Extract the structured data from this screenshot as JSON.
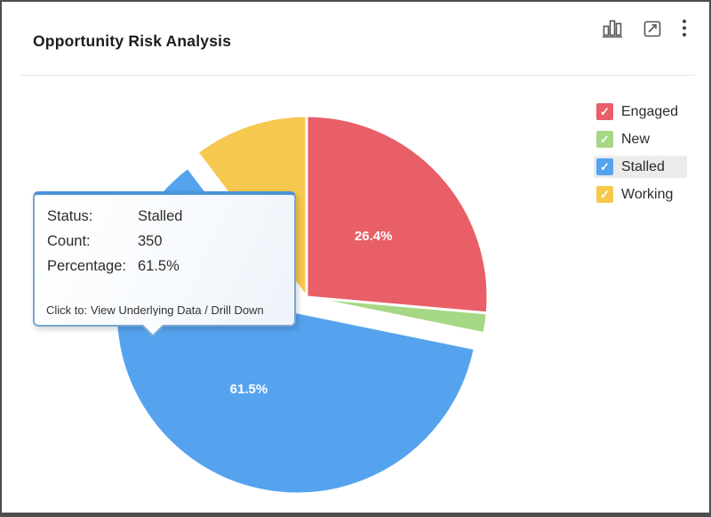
{
  "header": {
    "title": "Opportunity Risk Analysis",
    "icons": {
      "chart_type": "bar-chart",
      "expand": "open-in-window",
      "menu": "kebab-menu"
    }
  },
  "chart_data": {
    "type": "pie",
    "title": "Opportunity Risk Analysis",
    "categories": [
      "Engaged",
      "New",
      "Stalled",
      "Working"
    ],
    "values": [
      26.4,
      1.8,
      61.5,
      10.3
    ],
    "labels": [
      "26.4%",
      "",
      "61.5%",
      ""
    ],
    "colors": [
      "#e85f67",
      "#a6d784",
      "#55a3ee",
      "#f6c84f"
    ],
    "exploded": "Stalled",
    "start_angle": 0,
    "legend_position": "right",
    "stalled_count": 350
  },
  "legend": {
    "items": [
      {
        "label": "Engaged",
        "color": "#e85f67",
        "checked": true,
        "highlighted": false
      },
      {
        "label": "New",
        "color": "#a6d784",
        "checked": true,
        "highlighted": false
      },
      {
        "label": "Stalled",
        "color": "#55a3ee",
        "checked": true,
        "highlighted": true
      },
      {
        "label": "Working",
        "color": "#f6c84f",
        "checked": true,
        "highlighted": false
      }
    ],
    "check_glyph": "✓"
  },
  "tooltip": {
    "rows": [
      {
        "label": "Status:",
        "value": "Stalled"
      },
      {
        "label": "Count:",
        "value": "350"
      },
      {
        "label": "Percentage:",
        "value": "61.5%"
      }
    ],
    "footer": "Click to: View Underlying Data / Drill Down"
  }
}
